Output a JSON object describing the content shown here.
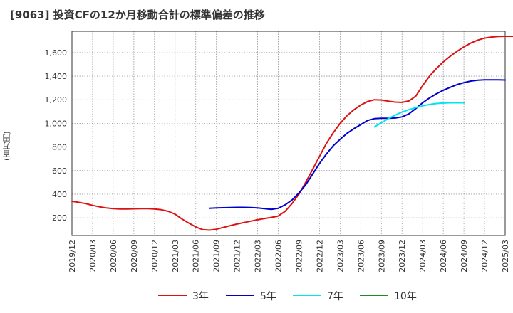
{
  "title": "[9063]  投資CFの12か月移動合計の標準偏差の推移",
  "chart_data": {
    "type": "line",
    "title": "[9063]  投資CFの12か月移動合計の標準偏差の推移",
    "ylabel": "(百万円)",
    "xlabel": "",
    "ylim": [
      50,
      1780
    ],
    "yticks": [
      200,
      400,
      600,
      800,
      1000,
      1200,
      1400,
      1600
    ],
    "ytick_labels": [
      "200",
      "400",
      "600",
      "800",
      "1,000",
      "1,200",
      "1,400",
      "1,600"
    ],
    "x_ticks": [
      "2019/12",
      "2020/03",
      "2020/06",
      "2020/09",
      "2020/12",
      "2021/03",
      "2021/06",
      "2021/09",
      "2021/12",
      "2022/03",
      "2022/06",
      "2022/09",
      "2022/12",
      "2023/03",
      "2023/06",
      "2023/09",
      "2023/12",
      "2024/03",
      "2024/06",
      "2024/09",
      "2024/12",
      "2025/03"
    ],
    "grid": true,
    "legend_position": "bottom",
    "series": [
      {
        "name": "3年",
        "color": "#dd1111",
        "start": "2019/12",
        "values": [
          340,
          330,
          320,
          305,
          293,
          283,
          278,
          275,
          274,
          276,
          278,
          278,
          275,
          268,
          255,
          230,
          190,
          155,
          123,
          100,
          95,
          103,
          118,
          133,
          147,
          160,
          172,
          183,
          194,
          203,
          215,
          255,
          320,
          400,
          500,
          610,
          720,
          830,
          920,
          1000,
          1065,
          1115,
          1155,
          1185,
          1200,
          1198,
          1188,
          1180,
          1178,
          1190,
          1230,
          1320,
          1400,
          1465,
          1520,
          1568,
          1610,
          1648,
          1680,
          1705,
          1722,
          1731,
          1736,
          1738,
          1738,
          1738
        ]
      },
      {
        "name": "5年",
        "color": "#0000cc",
        "start": "2021/08",
        "values": [
          280,
          283,
          285,
          287,
          288,
          288,
          287,
          284,
          278,
          272,
          280,
          310,
          350,
          410,
          480,
          570,
          660,
          740,
          810,
          865,
          915,
          955,
          990,
          1025,
          1040,
          1043,
          1043,
          1045,
          1055,
          1080,
          1125,
          1175,
          1215,
          1250,
          1280,
          1305,
          1328,
          1345,
          1358,
          1365,
          1368,
          1368,
          1368,
          1367
        ]
      },
      {
        "name": "7年",
        "color": "#00e5ee",
        "start": "2023/08",
        "values": [
          970,
          1005,
          1040,
          1070,
          1095,
          1115,
          1133,
          1148,
          1160,
          1168,
          1172,
          1174,
          1174,
          1174
        ]
      },
      {
        "name": "10年",
        "color": "#228822",
        "start": "2023/08",
        "values": []
      }
    ]
  }
}
